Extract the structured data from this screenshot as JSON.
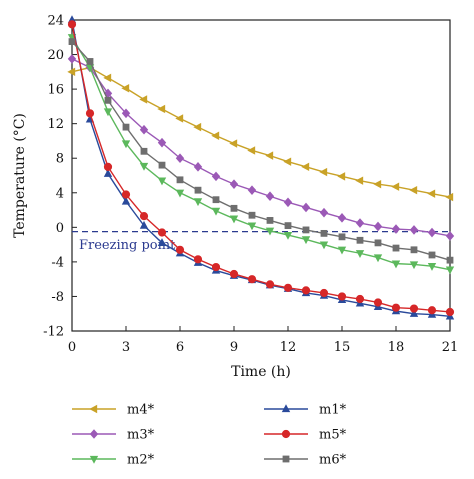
{
  "chart_data": {
    "type": "line",
    "xlabel": "Time (h)",
    "ylabel": "Temperature (°C)",
    "xlim": [
      0,
      21
    ],
    "ylim": [
      -12,
      24
    ],
    "x_ticks": [
      0,
      3,
      6,
      9,
      12,
      15,
      18,
      21
    ],
    "y_ticks": [
      -12,
      -8,
      -4,
      0,
      4,
      8,
      12,
      16,
      20,
      24
    ],
    "grid": false,
    "legend_position": "bottom",
    "reference_line": {
      "y": -0.5,
      "label": "Freezing point",
      "color": "#2b3a8f"
    },
    "x": [
      0,
      1,
      2,
      3,
      4,
      5,
      6,
      7,
      8,
      9,
      10,
      11,
      12,
      13,
      14,
      15,
      16,
      17,
      18,
      19,
      20,
      21
    ],
    "series": [
      {
        "name": "m4*",
        "color": "#c9a227",
        "marker": "triangle-left",
        "values": [
          18.0,
          18.5,
          17.3,
          16.1,
          14.8,
          13.7,
          12.6,
          11.6,
          10.6,
          9.7,
          8.9,
          8.3,
          7.6,
          7.0,
          6.4,
          5.9,
          5.4,
          5.0,
          4.7,
          4.3,
          3.9,
          3.5
        ]
      },
      {
        "name": "m3*",
        "color": "#9b59b6",
        "marker": "diamond",
        "values": [
          19.5,
          18.5,
          15.5,
          13.2,
          11.3,
          9.8,
          8.0,
          7.0,
          5.9,
          5.0,
          4.3,
          3.6,
          2.9,
          2.3,
          1.7,
          1.1,
          0.5,
          0.1,
          -0.2,
          -0.3,
          -0.6,
          -1.0
        ]
      },
      {
        "name": "m2*",
        "color": "#5cb85c",
        "marker": "triangle-down",
        "values": [
          22.0,
          18.5,
          13.4,
          9.7,
          7.1,
          5.4,
          4.0,
          3.0,
          1.9,
          1.0,
          0.2,
          -0.4,
          -0.9,
          -1.4,
          -2.0,
          -2.6,
          -3.0,
          -3.5,
          -4.2,
          -4.3,
          -4.5,
          -4.9
        ]
      },
      {
        "name": "m1*",
        "color": "#2a4a9b",
        "marker": "triangle-up",
        "values": [
          24.0,
          12.5,
          6.2,
          3.0,
          0.2,
          -1.8,
          -3.0,
          -4.1,
          -5.0,
          -5.6,
          -6.1,
          -6.7,
          -7.1,
          -7.6,
          -7.9,
          -8.4,
          -8.8,
          -9.2,
          -9.7,
          -10.0,
          -10.1,
          -10.3
        ]
      },
      {
        "name": "m5*",
        "color": "#d62728",
        "marker": "circle",
        "values": [
          23.5,
          13.2,
          7.0,
          3.8,
          1.3,
          -0.6,
          -2.6,
          -3.7,
          -4.6,
          -5.4,
          -6.0,
          -6.6,
          -7.0,
          -7.3,
          -7.6,
          -8.0,
          -8.3,
          -8.7,
          -9.3,
          -9.4,
          -9.6,
          -9.8
        ]
      },
      {
        "name": "m6*",
        "color": "#6e6e6e",
        "marker": "square",
        "values": [
          21.5,
          19.2,
          14.7,
          11.6,
          8.8,
          7.2,
          5.5,
          4.3,
          3.2,
          2.2,
          1.4,
          0.8,
          0.2,
          -0.3,
          -0.7,
          -1.1,
          -1.5,
          -1.8,
          -2.4,
          -2.6,
          -3.2,
          -3.8
        ]
      }
    ],
    "legend_order": [
      "m4*",
      "m1*",
      "m3*",
      "m5*",
      "m2*",
      "m6*"
    ]
  }
}
